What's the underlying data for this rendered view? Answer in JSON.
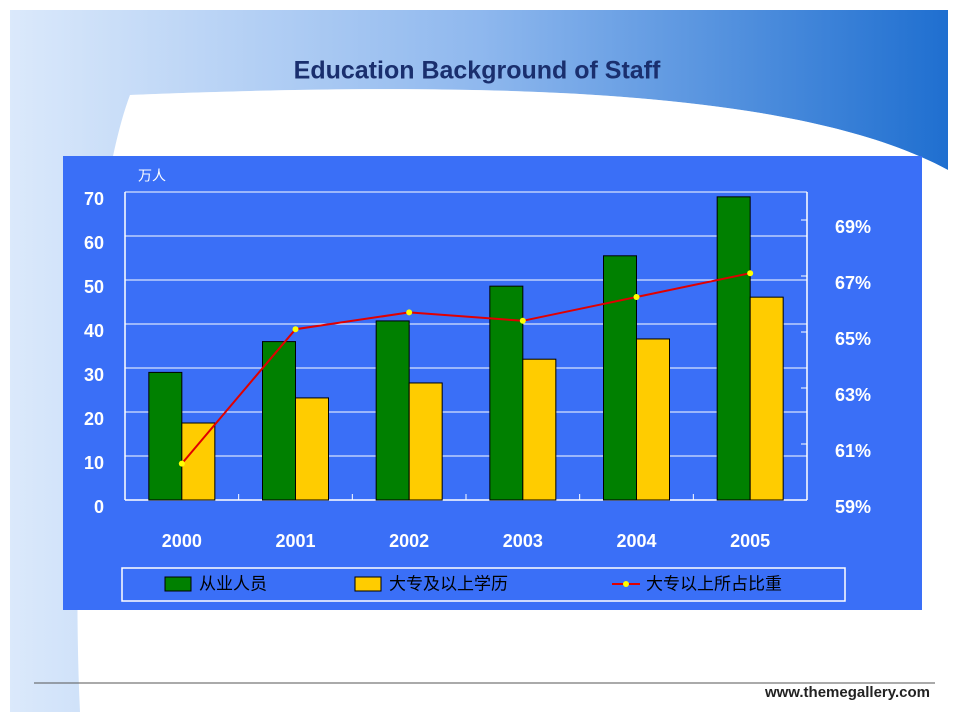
{
  "chart_data": {
    "type": "bar",
    "title": "Education Background of Staff",
    "unit_label": "万人",
    "categories": [
      "2000",
      "2001",
      "2002",
      "2003",
      "2004",
      "2005"
    ],
    "series": [
      {
        "name": "从业人员",
        "color": "#008000",
        "values": [
          29,
          36,
          40.7,
          48.6,
          55.5,
          68.9
        ]
      },
      {
        "name": "大专及以上学历",
        "color": "#ffcc00",
        "values": [
          17.5,
          23.2,
          26.6,
          32,
          36.6,
          46.1
        ]
      },
      {
        "name": "大专以上所占比重",
        "color": "#e00000",
        "marker_color": "#ffff00",
        "type": "line",
        "axis": "y2",
        "values": [
          60.3,
          65.1,
          65.7,
          65.4,
          66.25,
          67.1
        ]
      }
    ],
    "ylim": [
      0,
      70
    ],
    "yticks": [
      0,
      10,
      20,
      30,
      40,
      50,
      60,
      70
    ],
    "y2lim": [
      59,
      70
    ],
    "y2ticks": [
      {
        "value": 59,
        "label": "59%"
      },
      {
        "value": 61,
        "label": "61%"
      },
      {
        "value": 63,
        "label": "63%"
      },
      {
        "value": 65,
        "label": "65%"
      },
      {
        "value": 67,
        "label": "67%"
      },
      {
        "value": 69,
        "label": "69%"
      }
    ],
    "grid": true
  },
  "footer": "www.themegallery.com"
}
